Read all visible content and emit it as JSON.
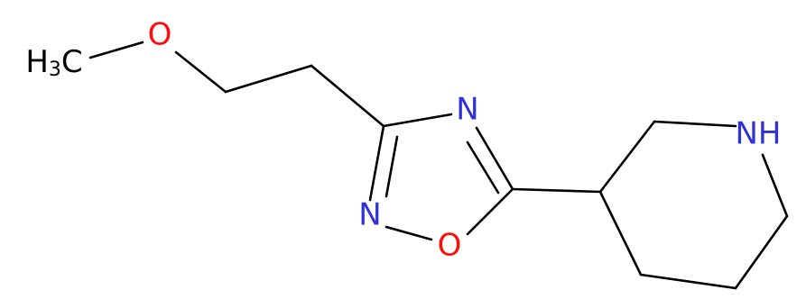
{
  "methyl": {
    "h": "H",
    "sub": "3",
    "c": "C"
  },
  "atoms": [
    {
      "label": "O"
    },
    {
      "label": "N"
    },
    {
      "label": "N"
    },
    {
      "label": "O"
    },
    {
      "label": "NH"
    }
  ]
}
